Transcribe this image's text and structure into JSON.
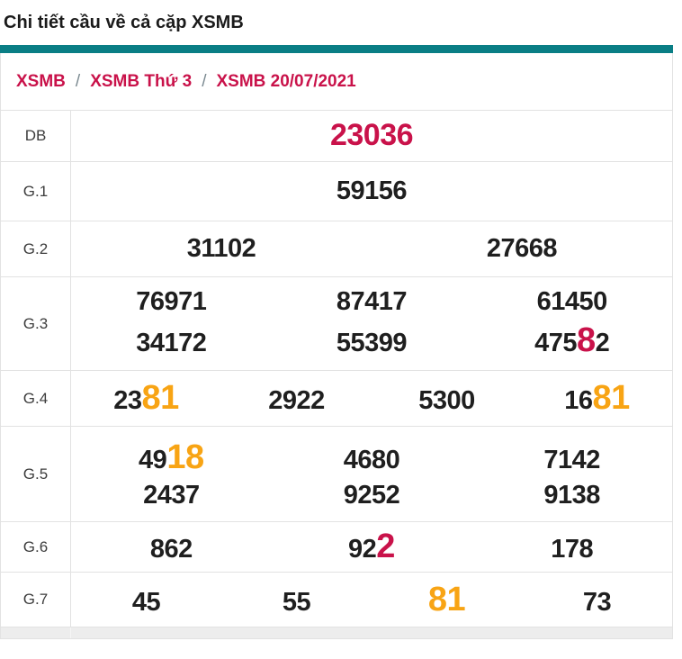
{
  "page": {
    "title": "Chi tiết cầu về cả cặp XSMB"
  },
  "breadcrumb": {
    "separator": "/",
    "items": [
      "XSMB",
      "XSMB Thứ 3",
      "XSMB 20/07/2021"
    ]
  },
  "colors": {
    "accent_teal": "#0a7e85",
    "highlight_red": "#c9124a",
    "highlight_orange": "#f8a414",
    "number_dark": "#1f1f1f",
    "border": "#e2e2e2"
  },
  "results": {
    "rows": [
      {
        "key": "db",
        "label": "DB",
        "lines": [
          [
            [
              {
                "t": "23036",
                "c": "red"
              }
            ]
          ]
        ]
      },
      {
        "key": "g1",
        "label": "G.1",
        "lines": [
          [
            [
              {
                "t": "59156"
              }
            ]
          ]
        ]
      },
      {
        "key": "g2",
        "label": "G.2",
        "lines": [
          [
            [
              {
                "t": "31102"
              }
            ],
            [
              {
                "t": "27668"
              }
            ]
          ]
        ]
      },
      {
        "key": "g3",
        "label": "G.3",
        "lines": [
          [
            [
              {
                "t": "76971"
              }
            ],
            [
              {
                "t": "87417"
              }
            ],
            [
              {
                "t": "61450"
              }
            ]
          ],
          [
            [
              {
                "t": "34172"
              }
            ],
            [
              {
                "t": "55399"
              }
            ],
            [
              {
                "t": "475"
              },
              {
                "t": "8",
                "c": "red"
              },
              {
                "t": "2"
              }
            ]
          ]
        ]
      },
      {
        "key": "g4",
        "label": "G.4",
        "lines": [
          [
            [
              {
                "t": "23"
              },
              {
                "t": "81",
                "c": "orange"
              }
            ],
            [
              {
                "t": "2922"
              }
            ],
            [
              {
                "t": "5300"
              }
            ],
            [
              {
                "t": "16"
              },
              {
                "t": "81",
                "c": "orange"
              }
            ]
          ]
        ]
      },
      {
        "key": "g5",
        "label": "G.5",
        "lines": [
          [
            [
              {
                "t": "49"
              },
              {
                "t": "18",
                "c": "orange"
              }
            ],
            [
              {
                "t": "4680"
              }
            ],
            [
              {
                "t": "7142"
              }
            ]
          ],
          [
            [
              {
                "t": "2437"
              }
            ],
            [
              {
                "t": "9252"
              }
            ],
            [
              {
                "t": "9138"
              }
            ]
          ]
        ]
      },
      {
        "key": "g6",
        "label": "G.6",
        "lines": [
          [
            [
              {
                "t": "862"
              }
            ],
            [
              {
                "t": "92"
              },
              {
                "t": "2",
                "c": "red"
              }
            ],
            [
              {
                "t": "178"
              }
            ]
          ]
        ]
      },
      {
        "key": "g7",
        "label": "G.7",
        "lines": [
          [
            [
              {
                "t": "45"
              }
            ],
            [
              {
                "t": "55"
              }
            ],
            [
              {
                "t": "81",
                "c": "orange"
              }
            ],
            [
              {
                "t": "73"
              }
            ]
          ]
        ]
      }
    ]
  }
}
